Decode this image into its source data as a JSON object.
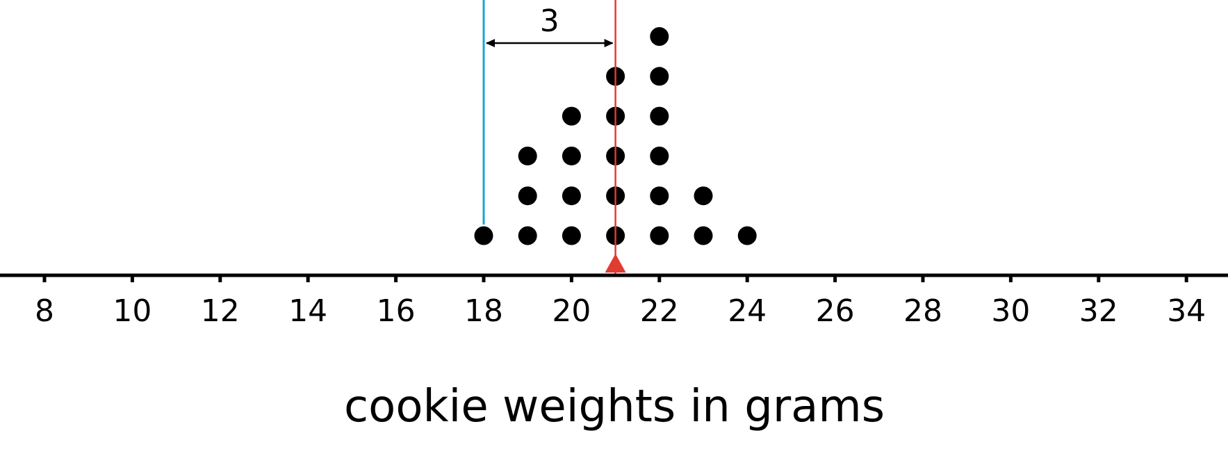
{
  "chart_data": {
    "type": "scatter",
    "subtype": "dot plot",
    "xlabel": "cookie weights in grams",
    "xlim": [
      7,
      35
    ],
    "xticks": [
      8,
      10,
      12,
      14,
      16,
      18,
      20,
      22,
      24,
      26,
      28,
      30,
      32,
      34
    ],
    "values": [
      18,
      19,
      19,
      19,
      20,
      20,
      20,
      20,
      21,
      21,
      21,
      21,
      21,
      22,
      22,
      22,
      22,
      22,
      22,
      23,
      23,
      24
    ],
    "counts": {
      "18": 1,
      "19": 3,
      "20": 4,
      "21": 5,
      "22": 6,
      "23": 2,
      "24": 1
    },
    "mean": 21,
    "reference_line": 18,
    "distance_annotation": "3",
    "grid": false,
    "colors": {
      "mean_line": "#e03c31",
      "reference_line": "#1ba1dc",
      "dots": "#000000"
    }
  }
}
